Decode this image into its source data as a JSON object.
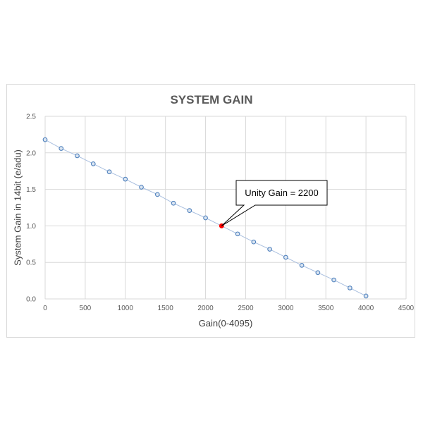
{
  "chart_data": {
    "type": "scatter",
    "title": "SYSTEM GAIN",
    "xlabel": "Gain(0-4095)",
    "ylabel": "System Gain in 14bit (e/adu)",
    "xlim": [
      0,
      4500
    ],
    "ylim": [
      0,
      2.5
    ],
    "xticks": [
      0,
      500,
      1000,
      1500,
      2000,
      2500,
      3000,
      3500,
      4000,
      4500
    ],
    "yticks": [
      "0.0",
      "0.5",
      "1.0",
      "1.5",
      "2.0",
      "2.5"
    ],
    "grid": true,
    "series": [
      {
        "color": "#4f81bd",
        "x": [
          0,
          200,
          400,
          600,
          800,
          1000,
          1200,
          1400,
          1600,
          1800,
          2000,
          2400,
          2600,
          2800,
          3000,
          3200,
          3400,
          3600,
          3800,
          4000
        ],
        "y": [
          2.18,
          2.06,
          1.96,
          1.85,
          1.74,
          1.64,
          1.53,
          1.43,
          1.31,
          1.21,
          1.11,
          0.89,
          0.78,
          0.68,
          0.57,
          0.46,
          0.36,
          0.26,
          0.15,
          0.04
        ]
      }
    ],
    "highlight": {
      "x": 2200,
      "y": 1.0,
      "color": "#ff0000"
    },
    "annotation": {
      "text": "Unity Gain = 2200",
      "x": 2200,
      "y": 1.0
    }
  }
}
